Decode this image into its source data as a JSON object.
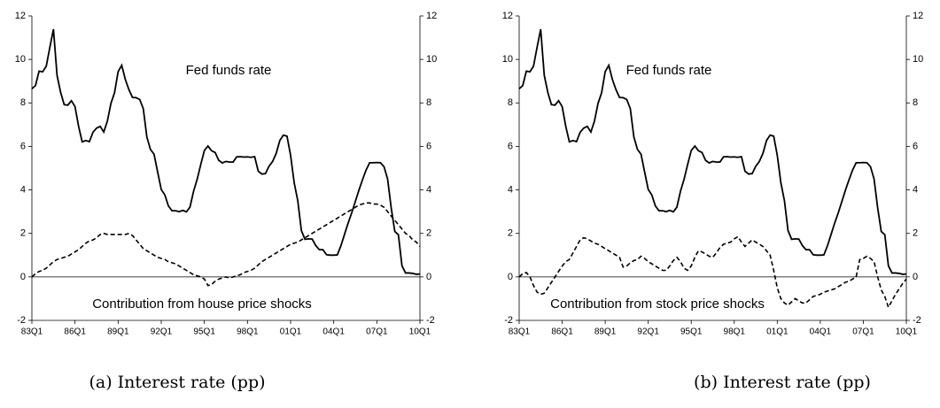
{
  "chart_data": [
    {
      "type": "line",
      "caption": "(a) Interest rate (pp)",
      "categories": [
        "83Q1",
        null,
        null,
        null,
        null,
        null,
        null,
        null,
        null,
        null,
        null,
        null,
        "86Q1",
        null,
        null,
        null,
        null,
        null,
        null,
        null,
        null,
        null,
        null,
        null,
        "89Q1",
        null,
        null,
        null,
        null,
        null,
        null,
        null,
        null,
        null,
        null,
        null,
        "92Q1",
        null,
        null,
        null,
        null,
        null,
        null,
        null,
        null,
        null,
        null,
        null,
        "95Q1",
        null,
        null,
        null,
        null,
        null,
        null,
        null,
        null,
        null,
        null,
        null,
        "98Q1",
        null,
        null,
        null,
        null,
        null,
        null,
        null,
        null,
        null,
        null,
        null,
        "01Q1",
        null,
        null,
        null,
        null,
        null,
        null,
        null,
        null,
        null,
        null,
        null,
        "04Q1",
        null,
        null,
        null,
        null,
        null,
        null,
        null,
        null,
        null,
        null,
        null,
        "07Q1",
        null,
        null,
        null,
        null,
        null,
        null,
        null,
        null,
        null,
        null,
        null,
        "10Q1"
      ],
      "series": [
        {
          "name": "Fed funds rate",
          "color": "#000000",
          "style": "solid",
          "values": [
            8.65,
            8.8,
            9.46,
            9.43,
            9.69,
            10.56,
            11.39,
            9.27,
            8.48,
            7.92,
            7.9,
            8.1,
            7.83,
            6.92,
            6.21,
            6.27,
            6.22,
            6.65,
            6.84,
            6.92,
            6.66,
            7.16,
            7.98,
            8.47,
            9.44,
            9.73,
            9.08,
            8.61,
            8.25,
            8.24,
            8.16,
            7.74,
            6.43,
            5.86,
            5.64,
            4.82,
            4.02,
            3.77,
            3.26,
            3.04,
            3.04,
            3.0,
            3.06,
            2.99,
            3.21,
            3.94,
            4.49,
            5.17,
            5.81,
            6.02,
            5.8,
            5.72,
            5.36,
            5.24,
            5.31,
            5.28,
            5.28,
            5.52,
            5.53,
            5.51,
            5.52,
            5.5,
            5.53,
            4.86,
            4.73,
            4.75,
            5.09,
            5.31,
            5.68,
            6.27,
            6.52,
            6.47,
            5.59,
            4.33,
            3.5,
            2.13,
            1.73,
            1.75,
            1.74,
            1.44,
            1.25,
            1.25,
            1.02,
            1.0,
            1.0,
            1.01,
            1.43,
            1.95,
            2.47,
            2.94,
            3.46,
            3.98,
            4.46,
            4.91,
            5.25,
            5.25,
            5.26,
            5.25,
            5.07,
            4.5,
            3.18,
            2.09,
            1.94,
            0.51,
            0.18,
            0.18,
            0.16,
            0.12,
            0.13
          ]
        },
        {
          "name": "Contribution from house price shocks",
          "color": "#000000",
          "style": "dashed",
          "values": [
            0,
            0.15,
            0.25,
            0.3,
            0.4,
            0.55,
            0.7,
            0.8,
            0.85,
            0.9,
            0.95,
            1.05,
            1.15,
            1.25,
            1.4,
            1.55,
            1.65,
            1.7,
            1.8,
            1.95,
            2.0,
            1.95,
            1.95,
            1.95,
            1.95,
            1.95,
            1.95,
            2.0,
            1.9,
            1.7,
            1.5,
            1.3,
            1.2,
            1.1,
            1.0,
            0.9,
            0.85,
            0.8,
            0.7,
            0.65,
            0.6,
            0.5,
            0.4,
            0.3,
            0.2,
            0.1,
            0.05,
            0,
            -0.1,
            -0.4,
            -0.35,
            -0.2,
            -0.1,
            -0.05,
            0,
            -0.05,
            0,
            0.05,
            0.1,
            0.2,
            0.25,
            0.3,
            0.4,
            0.55,
            0.7,
            0.8,
            0.9,
            1.0,
            1.1,
            1.2,
            1.3,
            1.4,
            1.5,
            1.55,
            1.6,
            1.7,
            1.8,
            1.9,
            2.0,
            2.1,
            2.2,
            2.3,
            2.4,
            2.5,
            2.6,
            2.7,
            2.8,
            2.9,
            3.0,
            3.1,
            3.2,
            3.3,
            3.35,
            3.4,
            3.4,
            3.35,
            3.35,
            3.3,
            3.2,
            3.0,
            2.8,
            2.6,
            2.4,
            2.2,
            2.0,
            1.9,
            1.7,
            1.6,
            1.4
          ]
        }
      ],
      "ylim": [
        -2,
        12
      ],
      "yticks": [
        -2,
        0,
        2,
        4,
        6,
        8,
        10,
        12
      ],
      "y2lim": [
        -2,
        12
      ],
      "y2ticks": [
        -2,
        0,
        2,
        4,
        6,
        8,
        10,
        12
      ]
    },
    {
      "type": "line",
      "caption": "(b) Interest rate (pp)",
      "categories": [
        "83Q1",
        null,
        null,
        null,
        null,
        null,
        null,
        null,
        null,
        null,
        null,
        null,
        "86Q1",
        null,
        null,
        null,
        null,
        null,
        null,
        null,
        null,
        null,
        null,
        null,
        "89Q1",
        null,
        null,
        null,
        null,
        null,
        null,
        null,
        null,
        null,
        null,
        null,
        "92Q1",
        null,
        null,
        null,
        null,
        null,
        null,
        null,
        null,
        null,
        null,
        null,
        "95Q1",
        null,
        null,
        null,
        null,
        null,
        null,
        null,
        null,
        null,
        null,
        null,
        "98Q1",
        null,
        null,
        null,
        null,
        null,
        null,
        null,
        null,
        null,
        null,
        null,
        "01Q1",
        null,
        null,
        null,
        null,
        null,
        null,
        null,
        null,
        null,
        null,
        null,
        "04Q1",
        null,
        null,
        null,
        null,
        null,
        null,
        null,
        null,
        null,
        null,
        null,
        "07Q1",
        null,
        null,
        null,
        null,
        null,
        null,
        null,
        null,
        null,
        null,
        null,
        "10Q1"
      ],
      "series": [
        {
          "name": "Fed funds rate",
          "color": "#000000",
          "style": "solid",
          "values": [
            8.65,
            8.8,
            9.46,
            9.43,
            9.69,
            10.56,
            11.39,
            9.27,
            8.48,
            7.92,
            7.9,
            8.1,
            7.83,
            6.92,
            6.21,
            6.27,
            6.22,
            6.65,
            6.84,
            6.92,
            6.66,
            7.16,
            7.98,
            8.47,
            9.44,
            9.73,
            9.08,
            8.61,
            8.25,
            8.24,
            8.16,
            7.74,
            6.43,
            5.86,
            5.64,
            4.82,
            4.02,
            3.77,
            3.26,
            3.04,
            3.04,
            3.0,
            3.06,
            2.99,
            3.21,
            3.94,
            4.49,
            5.17,
            5.81,
            6.02,
            5.8,
            5.72,
            5.36,
            5.24,
            5.31,
            5.28,
            5.28,
            5.52,
            5.53,
            5.51,
            5.52,
            5.5,
            5.53,
            4.86,
            4.73,
            4.75,
            5.09,
            5.31,
            5.68,
            6.27,
            6.52,
            6.47,
            5.59,
            4.33,
            3.5,
            2.13,
            1.73,
            1.75,
            1.74,
            1.44,
            1.25,
            1.25,
            1.02,
            1.0,
            1.0,
            1.01,
            1.43,
            1.95,
            2.47,
            2.94,
            3.46,
            3.98,
            4.46,
            4.91,
            5.25,
            5.25,
            5.26,
            5.25,
            5.07,
            4.5,
            3.18,
            2.09,
            1.94,
            0.51,
            0.18,
            0.18,
            0.16,
            0.12,
            0.13
          ]
        },
        {
          "name": "Contribution from stock price shocks",
          "color": "#000000",
          "style": "dashed",
          "values": [
            0,
            0.15,
            0.2,
            0,
            -0.4,
            -0.7,
            -0.8,
            -0.75,
            -0.5,
            -0.25,
            0,
            0.25,
            0.5,
            0.7,
            0.8,
            1.1,
            1.4,
            1.7,
            1.8,
            1.75,
            1.65,
            1.55,
            1.5,
            1.4,
            1.3,
            1.2,
            1.1,
            1.0,
            0.9,
            0.45,
            0.5,
            0.65,
            0.75,
            0.8,
            0.95,
            0.85,
            0.7,
            0.6,
            0.5,
            0.4,
            0.3,
            0.3,
            0.5,
            0.75,
            0.9,
            0.7,
            0.4,
            0.3,
            0.5,
            0.9,
            1.2,
            1.15,
            1.05,
            0.95,
            0.9,
            1.1,
            1.35,
            1.5,
            1.55,
            1.6,
            1.75,
            1.85,
            1.6,
            1.4,
            1.55,
            1.7,
            1.6,
            1.5,
            1.4,
            1.2,
            1.0,
            0.3,
            -0.5,
            -1.0,
            -1.2,
            -1.3,
            -1.15,
            -1.0,
            -1.1,
            -1.2,
            -1.2,
            -1.05,
            -0.9,
            -0.85,
            -0.8,
            -0.7,
            -0.65,
            -0.6,
            -0.55,
            -0.45,
            -0.35,
            -0.25,
            -0.2,
            -0.1,
            0,
            0.8,
            0.85,
            0.95,
            0.85,
            0.7,
            0,
            -0.6,
            -0.9,
            -1.4,
            -1.1,
            -0.8,
            -0.55,
            -0.3,
            -0.1
          ]
        }
      ],
      "ylim": [
        -2,
        12
      ],
      "yticks": [
        -2,
        0,
        2,
        4,
        6,
        8,
        10,
        12
      ],
      "y2lim": [
        -2,
        12
      ],
      "y2ticks": [
        -2,
        0,
        2,
        4,
        6,
        8,
        10,
        12
      ]
    }
  ]
}
